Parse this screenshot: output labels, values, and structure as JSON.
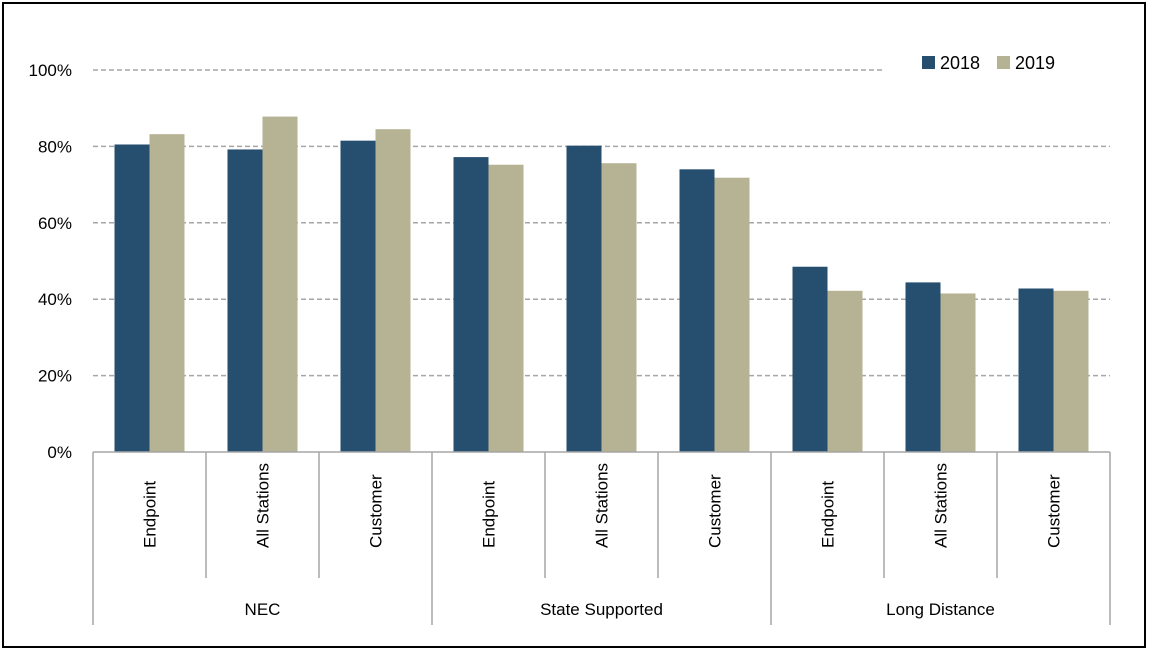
{
  "chart_data": {
    "type": "bar",
    "groups": [
      {
        "label": "NEC",
        "categories": [
          "Endpoint",
          "All Stations",
          "Customer"
        ]
      },
      {
        "label": "State Supported",
        "categories": [
          "Endpoint",
          "All Stations",
          "Customer"
        ]
      },
      {
        "label": "Long Distance",
        "categories": [
          "Endpoint",
          "All Stations",
          "Customer"
        ]
      }
    ],
    "series": [
      {
        "name": "2018",
        "color": "#264e6e",
        "values": [
          80.5,
          79.2,
          81.5,
          77.2,
          80.2,
          74.0,
          48.5,
          44.4,
          42.8
        ]
      },
      {
        "name": "2019",
        "color": "#b5b393",
        "values": [
          83.2,
          87.8,
          84.5,
          75.2,
          75.6,
          71.8,
          42.2,
          41.5,
          42.2
        ]
      }
    ],
    "ylim": [
      0,
      100
    ],
    "yticks": [
      0,
      20,
      40,
      60,
      80,
      100
    ],
    "ytick_labels": [
      "0%",
      "20%",
      "40%",
      "60%",
      "80%",
      "100%"
    ],
    "grid": true,
    "legend_position": "top-right"
  }
}
